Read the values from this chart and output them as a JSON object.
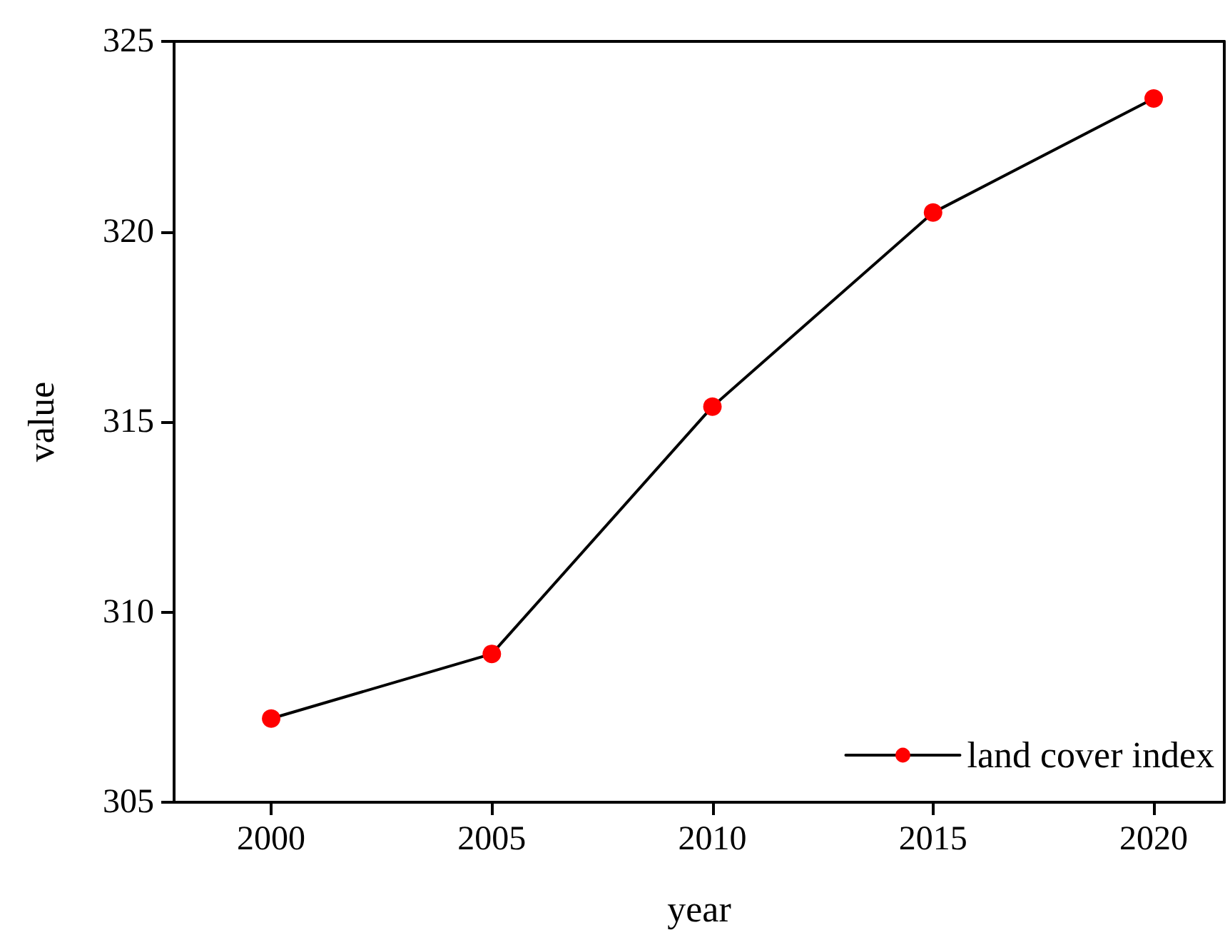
{
  "chart_data": {
    "type": "line",
    "xlabel": "year",
    "ylabel": "value",
    "x": [
      2000,
      2005,
      2010,
      2015,
      2020
    ],
    "series": [
      {
        "name": "land cover index",
        "color": "#ff0000",
        "values": [
          307.2,
          308.9,
          315.4,
          320.5,
          323.5
        ]
      }
    ],
    "xlim": [
      1997.8,
      2021.6
    ],
    "xticks": [
      2000,
      2005,
      2010,
      2015,
      2020
    ],
    "ylim": [
      305,
      325
    ],
    "yticks": [
      305,
      310,
      315,
      320,
      325
    ],
    "grid": false,
    "legend": "bottom right",
    "marker": "circle",
    "line_style": "solid"
  }
}
